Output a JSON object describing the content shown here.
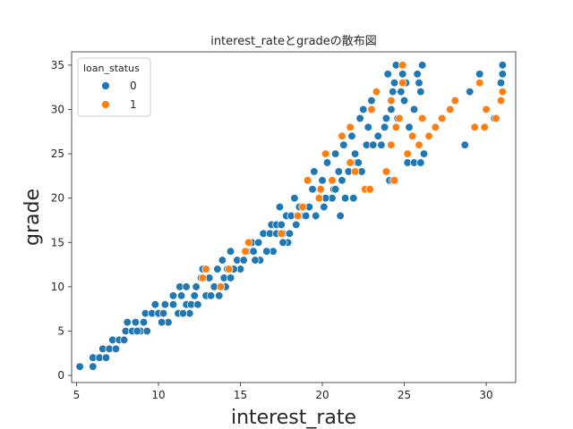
{
  "chart_data": {
    "type": "scatter",
    "title": "interest_rateとgradeの散布図",
    "xlabel": "interest_rate",
    "ylabel": "grade",
    "xlim": [
      4.7,
      31.8
    ],
    "ylim": [
      -0.8,
      36.5
    ],
    "xticks": [
      5,
      10,
      15,
      20,
      25,
      30
    ],
    "yticks": [
      0,
      5,
      10,
      15,
      20,
      25,
      30,
      35
    ],
    "grid": false,
    "legend": {
      "title": "loan_status",
      "placement": "top-left"
    },
    "series": [
      {
        "name": "0",
        "color": "#1f77b4",
        "points": [
          [
            5.2,
            1
          ],
          [
            6.0,
            1
          ],
          [
            6.0,
            2
          ],
          [
            6.4,
            2
          ],
          [
            6.8,
            2
          ],
          [
            6.6,
            3
          ],
          [
            7.0,
            3
          ],
          [
            7.4,
            3
          ],
          [
            7.2,
            4
          ],
          [
            7.6,
            4
          ],
          [
            7.9,
            4
          ],
          [
            8.0,
            5
          ],
          [
            8.4,
            5
          ],
          [
            8.9,
            5
          ],
          [
            8.1,
            6
          ],
          [
            8.6,
            6
          ],
          [
            9.1,
            6
          ],
          [
            9.2,
            7
          ],
          [
            9.6,
            7
          ],
          [
            10.0,
            7
          ],
          [
            10.3,
            7
          ],
          [
            9.8,
            8
          ],
          [
            10.4,
            8
          ],
          [
            10.9,
            8
          ],
          [
            11.2,
            7
          ],
          [
            10.9,
            9
          ],
          [
            11.4,
            9
          ],
          [
            11.7,
            8
          ],
          [
            12.0,
            8
          ],
          [
            11.3,
            10
          ],
          [
            11.7,
            10
          ],
          [
            12.2,
            9
          ],
          [
            12.3,
            10
          ],
          [
            12.6,
            11
          ],
          [
            12.9,
            9
          ],
          [
            12.7,
            12
          ],
          [
            13.1,
            11
          ],
          [
            13.4,
            10
          ],
          [
            13.6,
            12
          ],
          [
            13.9,
            13
          ],
          [
            14.0,
            11
          ],
          [
            14.2,
            12
          ],
          [
            14.4,
            14
          ],
          [
            14.8,
            13
          ],
          [
            14.4,
            11
          ],
          [
            15.2,
            13
          ],
          [
            15.4,
            14
          ],
          [
            15.8,
            14
          ],
          [
            15.7,
            15
          ],
          [
            16.1,
            15
          ],
          [
            16.4,
            16
          ],
          [
            16.8,
            16
          ],
          [
            16.9,
            17
          ],
          [
            17.2,
            16
          ],
          [
            17.2,
            17
          ],
          [
            17.5,
            17
          ],
          [
            17.6,
            16
          ],
          [
            17.4,
            19
          ],
          [
            17.8,
            18
          ],
          [
            18.1,
            18
          ],
          [
            18.3,
            20
          ],
          [
            18.6,
            19
          ],
          [
            18.9,
            18
          ],
          [
            19.2,
            19
          ],
          [
            19.4,
            21
          ],
          [
            19.5,
            23
          ],
          [
            19.8,
            20
          ],
          [
            20.0,
            22
          ],
          [
            20.1,
            19
          ],
          [
            20.3,
            24
          ],
          [
            20.7,
            21
          ],
          [
            20.8,
            25
          ],
          [
            21.0,
            23
          ],
          [
            21.2,
            22
          ],
          [
            21.4,
            20
          ],
          [
            21.3,
            26
          ],
          [
            21.6,
            23
          ],
          [
            21.8,
            27
          ],
          [
            22.0,
            25
          ],
          [
            22.1,
            24
          ],
          [
            22.3,
            29
          ],
          [
            22.5,
            30
          ],
          [
            22.7,
            26
          ],
          [
            22.8,
            28
          ],
          [
            23.0,
            31
          ],
          [
            23.1,
            26
          ],
          [
            23.4,
            27
          ],
          [
            23.6,
            26
          ],
          [
            23.8,
            28
          ],
          [
            23.9,
            29
          ],
          [
            24.0,
            34
          ],
          [
            24.2,
            30
          ],
          [
            24.4,
            33
          ],
          [
            24.5,
            35
          ],
          [
            24.6,
            29
          ],
          [
            24.8,
            32
          ],
          [
            24.9,
            34
          ],
          [
            25.0,
            31
          ],
          [
            25.1,
            33
          ],
          [
            25.3,
            28
          ],
          [
            25.6,
            30
          ],
          [
            25.8,
            34
          ],
          [
            25.9,
            33
          ],
          [
            26.0,
            32
          ],
          [
            26.1,
            35
          ],
          [
            25.2,
            24
          ],
          [
            25.6,
            24
          ],
          [
            26.0,
            24
          ],
          [
            26.2,
            25
          ],
          [
            24.1,
            22
          ],
          [
            24.3,
            22
          ],
          [
            22.9,
            21
          ],
          [
            22.2,
            24
          ],
          [
            21.9,
            20
          ],
          [
            22.4,
            23
          ],
          [
            21.1,
            18
          ],
          [
            20.8,
            21
          ],
          [
            20.6,
            20
          ],
          [
            20.2,
            20
          ],
          [
            19.6,
            18
          ],
          [
            19.0,
            18
          ],
          [
            18.4,
            17
          ],
          [
            18.0,
            16
          ],
          [
            17.9,
            15
          ],
          [
            17.6,
            15
          ],
          [
            17.0,
            14
          ],
          [
            16.6,
            14
          ],
          [
            16.2,
            13
          ],
          [
            15.9,
            13
          ],
          [
            15.0,
            12
          ],
          [
            14.6,
            12
          ],
          [
            14.1,
            10
          ],
          [
            13.7,
            9
          ],
          [
            13.2,
            9
          ],
          [
            12.4,
            8
          ],
          [
            11.9,
            7
          ],
          [
            11.5,
            7
          ],
          [
            10.6,
            6
          ],
          [
            10.2,
            6
          ],
          [
            9.3,
            5
          ],
          [
            8.7,
            5
          ],
          [
            28.7,
            26
          ],
          [
            29.0,
            32
          ],
          [
            29.6,
            34
          ],
          [
            30.5,
            29
          ],
          [
            30.9,
            33
          ],
          [
            31.0,
            34
          ],
          [
            31.0,
            35
          ],
          [
            24.3,
            32
          ]
        ]
      },
      {
        "name": "1",
        "color": "#ff7f0e",
        "points": [
          [
            12.7,
            11
          ],
          [
            12.9,
            12
          ],
          [
            13.8,
            10
          ],
          [
            14.3,
            12
          ],
          [
            15.5,
            15
          ],
          [
            18.5,
            18
          ],
          [
            18.8,
            19
          ],
          [
            19.1,
            22
          ],
          [
            19.8,
            20
          ],
          [
            19.9,
            21
          ],
          [
            20.2,
            25
          ],
          [
            20.6,
            22
          ],
          [
            21.2,
            27
          ],
          [
            21.7,
            28
          ],
          [
            22.0,
            23
          ],
          [
            22.6,
            21
          ],
          [
            23.0,
            30
          ],
          [
            23.3,
            32
          ],
          [
            23.9,
            23
          ],
          [
            24.2,
            26
          ],
          [
            24.5,
            28
          ],
          [
            24.9,
            35
          ],
          [
            24.2,
            31
          ],
          [
            24.7,
            29
          ],
          [
            24.9,
            33
          ],
          [
            24.4,
            22
          ],
          [
            25.2,
            25
          ],
          [
            25.5,
            27
          ],
          [
            25.9,
            26
          ],
          [
            26.1,
            29
          ],
          [
            26.5,
            27
          ],
          [
            26.9,
            28
          ],
          [
            27.3,
            29
          ],
          [
            27.8,
            30
          ],
          [
            28.1,
            31
          ],
          [
            29.3,
            28
          ],
          [
            29.6,
            33
          ],
          [
            29.9,
            28
          ],
          [
            30.0,
            30
          ],
          [
            30.6,
            29
          ],
          [
            30.9,
            31
          ],
          [
            31.0,
            32
          ],
          [
            21.7,
            24
          ],
          [
            22.9,
            21
          ],
          [
            15.3,
            14
          ],
          [
            17.5,
            16
          ]
        ]
      }
    ]
  }
}
